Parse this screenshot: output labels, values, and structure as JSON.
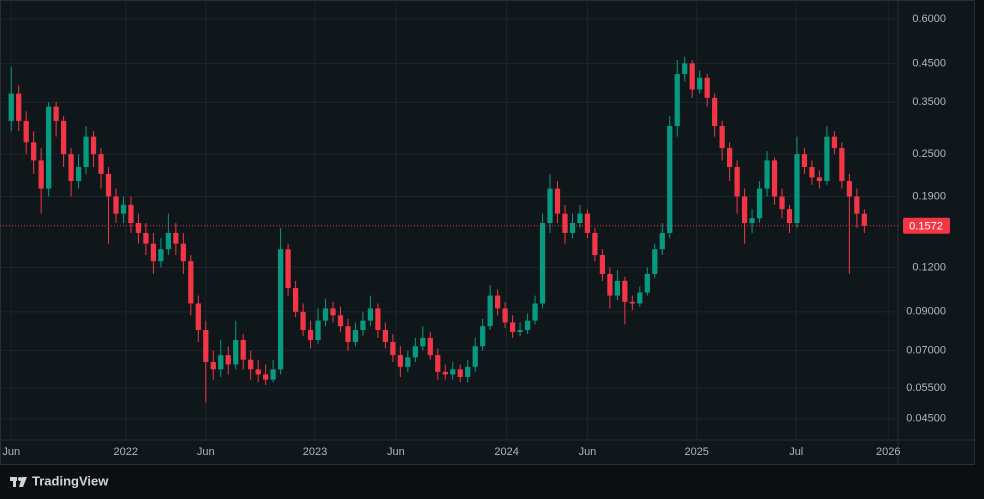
{
  "chart_data": {
    "type": "candlestick",
    "brand": "TradingView",
    "open": [
      0.31,
      0.37,
      0.31,
      0.27,
      0.24,
      0.2,
      0.34,
      0.31,
      0.25,
      0.21,
      0.23,
      0.28,
      0.25,
      0.22,
      0.19,
      0.17,
      0.18,
      0.16,
      0.15,
      0.14,
      0.125,
      0.135,
      0.15,
      0.14,
      0.125,
      0.095,
      0.08,
      0.065,
      0.062,
      0.068,
      0.064,
      0.075,
      0.066,
      0.062,
      0.06,
      0.058,
      0.062,
      0.135,
      0.105,
      0.09,
      0.08,
      0.075,
      0.085,
      0.092,
      0.088,
      0.082,
      0.074,
      0.08,
      0.085,
      0.092,
      0.08,
      0.074,
      0.068,
      0.063,
      0.067,
      0.072,
      0.076,
      0.068,
      0.061,
      0.06,
      0.062,
      0.059,
      0.063,
      0.072,
      0.082,
      0.1,
      0.092,
      0.084,
      0.079,
      0.08,
      0.085,
      0.095,
      0.16,
      0.2,
      0.17,
      0.15,
      0.16,
      0.17,
      0.15,
      0.13,
      0.115,
      0.1,
      0.11,
      0.096,
      0.095,
      0.102,
      0.115,
      0.135,
      0.15,
      0.3,
      0.42,
      0.45,
      0.38,
      0.41,
      0.36,
      0.3,
      0.26,
      0.23,
      0.19,
      0.16,
      0.165,
      0.2,
      0.24,
      0.19,
      0.175,
      0.16,
      0.25,
      0.23,
      0.215,
      0.21,
      0.28,
      0.26,
      0.21,
      0.19,
      0.17
    ],
    "high": [
      0.44,
      0.39,
      0.33,
      0.29,
      0.26,
      0.35,
      0.35,
      0.32,
      0.26,
      0.25,
      0.3,
      0.29,
      0.26,
      0.23,
      0.2,
      0.19,
      0.19,
      0.17,
      0.16,
      0.15,
      0.145,
      0.17,
      0.16,
      0.15,
      0.13,
      0.1,
      0.085,
      0.07,
      0.075,
      0.072,
      0.085,
      0.078,
      0.07,
      0.066,
      0.064,
      0.066,
      0.155,
      0.14,
      0.11,
      0.095,
      0.085,
      0.092,
      0.098,
      0.096,
      0.093,
      0.086,
      0.084,
      0.09,
      0.1,
      0.095,
      0.084,
      0.078,
      0.072,
      0.07,
      0.076,
      0.082,
      0.079,
      0.071,
      0.064,
      0.065,
      0.064,
      0.066,
      0.076,
      0.086,
      0.107,
      0.104,
      0.096,
      0.088,
      0.084,
      0.089,
      0.1,
      0.17,
      0.22,
      0.21,
      0.18,
      0.17,
      0.18,
      0.175,
      0.155,
      0.135,
      0.12,
      0.118,
      0.113,
      0.1,
      0.106,
      0.12,
      0.14,
      0.16,
      0.32,
      0.46,
      0.47,
      0.46,
      0.43,
      0.42,
      0.37,
      0.31,
      0.27,
      0.24,
      0.2,
      0.175,
      0.21,
      0.255,
      0.245,
      0.2,
      0.18,
      0.28,
      0.26,
      0.24,
      0.225,
      0.3,
      0.29,
      0.27,
      0.22,
      0.2,
      0.175
    ],
    "low": [
      0.29,
      0.29,
      0.25,
      0.22,
      0.17,
      0.19,
      0.28,
      0.23,
      0.19,
      0.2,
      0.22,
      0.23,
      0.2,
      0.14,
      0.16,
      0.16,
      0.15,
      0.14,
      0.13,
      0.115,
      0.12,
      0.13,
      0.13,
      0.115,
      0.088,
      0.074,
      0.05,
      0.058,
      0.059,
      0.06,
      0.062,
      0.062,
      0.058,
      0.057,
      0.056,
      0.057,
      0.06,
      0.1,
      0.087,
      0.077,
      0.071,
      0.073,
      0.082,
      0.084,
      0.079,
      0.07,
      0.072,
      0.077,
      0.082,
      0.076,
      0.071,
      0.065,
      0.059,
      0.061,
      0.065,
      0.07,
      0.066,
      0.058,
      0.058,
      0.058,
      0.057,
      0.057,
      0.061,
      0.07,
      0.08,
      0.088,
      0.081,
      0.076,
      0.077,
      0.078,
      0.083,
      0.092,
      0.15,
      0.16,
      0.14,
      0.145,
      0.155,
      0.145,
      0.125,
      0.11,
      0.092,
      0.097,
      0.083,
      0.091,
      0.093,
      0.1,
      0.112,
      0.13,
      0.145,
      0.28,
      0.4,
      0.36,
      0.37,
      0.34,
      0.28,
      0.24,
      0.21,
      0.17,
      0.14,
      0.15,
      0.16,
      0.19,
      0.18,
      0.165,
      0.15,
      0.155,
      0.22,
      0.205,
      0.2,
      0.205,
      0.25,
      0.2,
      0.115,
      0.155,
      0.15
    ],
    "close": [
      0.37,
      0.31,
      0.27,
      0.24,
      0.2,
      0.34,
      0.31,
      0.25,
      0.21,
      0.23,
      0.28,
      0.25,
      0.22,
      0.19,
      0.17,
      0.18,
      0.16,
      0.15,
      0.14,
      0.125,
      0.135,
      0.15,
      0.14,
      0.125,
      0.095,
      0.08,
      0.065,
      0.062,
      0.068,
      0.064,
      0.075,
      0.066,
      0.062,
      0.06,
      0.058,
      0.062,
      0.135,
      0.105,
      0.09,
      0.08,
      0.075,
      0.085,
      0.092,
      0.088,
      0.082,
      0.074,
      0.08,
      0.085,
      0.092,
      0.08,
      0.074,
      0.068,
      0.063,
      0.067,
      0.072,
      0.076,
      0.068,
      0.061,
      0.06,
      0.062,
      0.059,
      0.063,
      0.072,
      0.082,
      0.1,
      0.092,
      0.084,
      0.079,
      0.08,
      0.085,
      0.095,
      0.16,
      0.2,
      0.17,
      0.15,
      0.16,
      0.17,
      0.15,
      0.13,
      0.115,
      0.1,
      0.11,
      0.096,
      0.095,
      0.102,
      0.115,
      0.135,
      0.15,
      0.3,
      0.42,
      0.45,
      0.38,
      0.41,
      0.36,
      0.3,
      0.26,
      0.23,
      0.19,
      0.16,
      0.165,
      0.2,
      0.24,
      0.19,
      0.175,
      0.16,
      0.25,
      0.23,
      0.215,
      0.21,
      0.28,
      0.26,
      0.21,
      0.19,
      0.17,
      0.1572
    ],
    "up_color": "#089981",
    "down_color": "#f23645",
    "last_price": 0.1572,
    "log_scale": true,
    "grid": true,
    "ylim": [
      0.04,
      0.636
    ],
    "yticks": [
      {
        "value": 0.6,
        "label": "0.6000"
      },
      {
        "value": 0.45,
        "label": "0.4500"
      },
      {
        "value": 0.35,
        "label": "0.3500"
      },
      {
        "value": 0.25,
        "label": "0.2500"
      },
      {
        "value": 0.19,
        "label": "0.1900"
      },
      {
        "value": 0.12,
        "label": "0.1200"
      },
      {
        "value": 0.09,
        "label": "0.09000"
      },
      {
        "value": 0.07,
        "label": "0.07000"
      },
      {
        "value": 0.055,
        "label": "0.05500"
      },
      {
        "value": 0.045,
        "label": "0.04500"
      }
    ],
    "xlim": [
      -1.5,
      118.5
    ],
    "xticks": [
      {
        "value": 0,
        "label": "Jun"
      },
      {
        "value": 15.3,
        "label": "2022"
      },
      {
        "value": 26,
        "label": "Jun"
      },
      {
        "value": 40.6,
        "label": "2023"
      },
      {
        "value": 51.4,
        "label": "Jun"
      },
      {
        "value": 66.2,
        "label": "2024"
      },
      {
        "value": 77,
        "label": "Jun"
      },
      {
        "value": 91.6,
        "label": "2025"
      },
      {
        "value": 104.9,
        "label": "Jul"
      },
      {
        "value": 117.2,
        "label": "2026"
      }
    ]
  }
}
